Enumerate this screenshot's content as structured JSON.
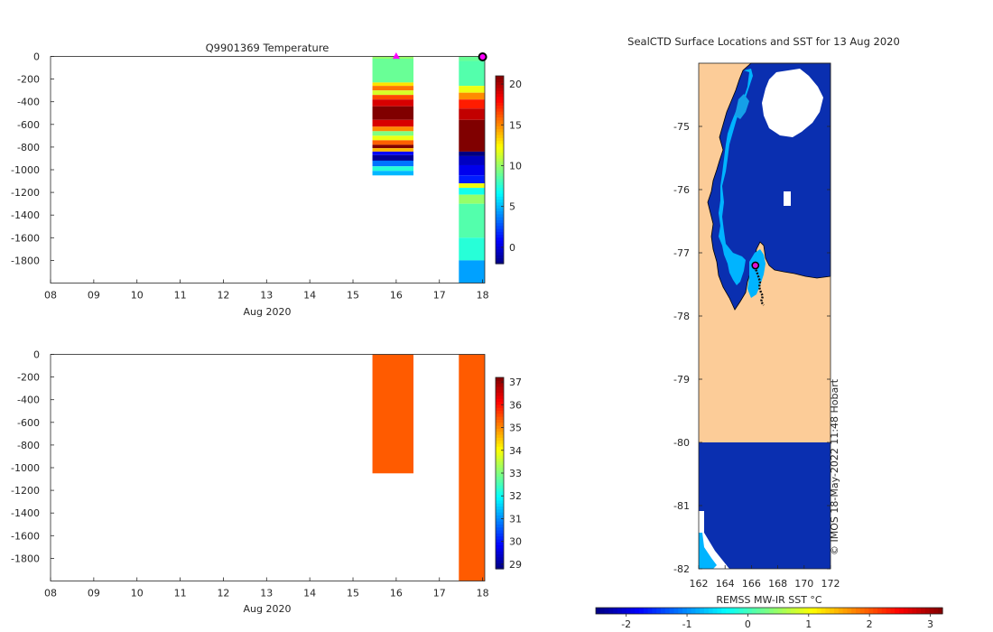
{
  "chart_data": [
    {
      "type": "heatmap",
      "title": "Q9901369  Temperature",
      "xlabel": "Aug 2020",
      "x_ticks": [
        "08",
        "09",
        "10",
        "11",
        "12",
        "13",
        "14",
        "15",
        "16",
        "17",
        "18"
      ],
      "xlim": [
        8,
        18.05
      ],
      "y_ticks": [
        "0",
        "-200",
        "-400",
        "-600",
        "-800",
        "-1000",
        "-1200",
        "-1400",
        "-1600",
        "-1800"
      ],
      "ylim": [
        -2000,
        0
      ],
      "colorbar": {
        "ticks": [
          "0",
          "5",
          "10",
          "15",
          "20"
        ],
        "range": [
          -2,
          21
        ],
        "colormap": "jet"
      },
      "marker_day": 16.0,
      "marker_color": "#ff00ff",
      "end_marker_day": 18.0,
      "profiles": [
        {
          "x_start": 15.45,
          "x_end": 16.4,
          "max_depth": 1050,
          "layers": [
            {
              "top": 0,
              "bottom": 20,
              "value": 10.0
            },
            {
              "top": 20,
              "bottom": 230,
              "value": 9.0
            },
            {
              "top": 230,
              "bottom": 260,
              "value": 13.0
            },
            {
              "top": 260,
              "bottom": 300,
              "value": 15.5
            },
            {
              "top": 300,
              "bottom": 340,
              "value": 11.5
            },
            {
              "top": 340,
              "bottom": 380,
              "value": 16.5
            },
            {
              "top": 380,
              "bottom": 440,
              "value": 19.0
            },
            {
              "top": 440,
              "bottom": 560,
              "value": 21.0
            },
            {
              "top": 560,
              "bottom": 620,
              "value": 19.0
            },
            {
              "top": 620,
              "bottom": 660,
              "value": 15.0
            },
            {
              "top": 660,
              "bottom": 700,
              "value": 9.5
            },
            {
              "top": 700,
              "bottom": 740,
              "value": 12.0
            },
            {
              "top": 740,
              "bottom": 780,
              "value": 16.0
            },
            {
              "top": 780,
              "bottom": 810,
              "value": 21.0
            },
            {
              "top": 810,
              "bottom": 840,
              "value": 14.0
            },
            {
              "top": 840,
              "bottom": 870,
              "value": 1.0
            },
            {
              "top": 870,
              "bottom": 920,
              "value": -1.5
            },
            {
              "top": 920,
              "bottom": 970,
              "value": 3.5
            },
            {
              "top": 970,
              "bottom": 1010,
              "value": 7.5
            },
            {
              "top": 1010,
              "bottom": 1050,
              "value": 5.0
            }
          ]
        },
        {
          "x_start": 17.45,
          "x_end": 18.05,
          "max_depth": 2000,
          "layers": [
            {
              "top": 0,
              "bottom": 40,
              "value": 9.0
            },
            {
              "top": 40,
              "bottom": 260,
              "value": 8.5
            },
            {
              "top": 260,
              "bottom": 320,
              "value": 12.0
            },
            {
              "top": 320,
              "bottom": 380,
              "value": 15.0
            },
            {
              "top": 380,
              "bottom": 460,
              "value": 17.5
            },
            {
              "top": 460,
              "bottom": 560,
              "value": 19.5
            },
            {
              "top": 560,
              "bottom": 840,
              "value": 21.0
            },
            {
              "top": 840,
              "bottom": 880,
              "value": -2.0
            },
            {
              "top": 880,
              "bottom": 960,
              "value": -0.5
            },
            {
              "top": 960,
              "bottom": 1050,
              "value": 0.5
            },
            {
              "top": 1050,
              "bottom": 1120,
              "value": 1.5
            },
            {
              "top": 1120,
              "bottom": 1160,
              "value": 12.0
            },
            {
              "top": 1160,
              "bottom": 1220,
              "value": 7.0
            },
            {
              "top": 1220,
              "bottom": 1300,
              "value": 10.0
            },
            {
              "top": 1300,
              "bottom": 1600,
              "value": 8.5
            },
            {
              "top": 1600,
              "bottom": 1800,
              "value": 7.5
            },
            {
              "top": 1800,
              "bottom": 2000,
              "value": 4.5
            }
          ]
        }
      ]
    },
    {
      "type": "heatmap",
      "title": "",
      "xlabel": "Aug 2020",
      "x_ticks": [
        "08",
        "09",
        "10",
        "11",
        "12",
        "13",
        "14",
        "15",
        "16",
        "17",
        "18"
      ],
      "xlim": [
        8,
        18.05
      ],
      "y_ticks": [
        "0",
        "-200",
        "-400",
        "-600",
        "-800",
        "-1000",
        "-1200",
        "-1400",
        "-1600",
        "-1800"
      ],
      "ylim": [
        -2000,
        0
      ],
      "colorbar": {
        "ticks": [
          "29",
          "30",
          "31",
          "32",
          "33",
          "34",
          "35",
          "36",
          "37"
        ],
        "range": [
          28.8,
          37.2
        ],
        "colormap": "jet"
      },
      "profiles": [
        {
          "x_start": 15.45,
          "x_end": 16.4,
          "max_depth": 1050,
          "layers": [
            {
              "top": 0,
              "bottom": 1050,
              "value": 35.4
            }
          ]
        },
        {
          "x_start": 17.45,
          "x_end": 18.05,
          "max_depth": 2000,
          "layers": [
            {
              "top": 0,
              "bottom": 2000,
              "value": 35.4
            }
          ]
        }
      ]
    },
    {
      "type": "map",
      "title": "SealCTD Surface Locations and SST for 13 Aug 2020",
      "x_ticks": [
        "162",
        "164",
        "166",
        "168",
        "170",
        "172"
      ],
      "xlim": [
        162,
        172
      ],
      "y_ticks": [
        "-75",
        "-76",
        "-77",
        "-78",
        "-79",
        "-80",
        "-81",
        "-82"
      ],
      "ylim": [
        -82,
        -74
      ],
      "colorbar": {
        "label": "REMSS MW-IR SST °C",
        "ticks": [
          "-2",
          "-1",
          "0",
          "1",
          "2",
          "3"
        ],
        "range": [
          -2.5,
          3.2
        ],
        "colormap": "jet"
      },
      "colors": {
        "land": "#fccc98",
        "ocean": "#0a2fb0",
        "coast_ice": "#00b4ff",
        "no_data": "#ffffff",
        "track": "#111111",
        "last_position": "#e010d0"
      },
      "seal_position": {
        "lon": 166.3,
        "lat": -77.2
      },
      "credit": "© IMOS 18-May-2022 11:48 Hobart"
    }
  ]
}
